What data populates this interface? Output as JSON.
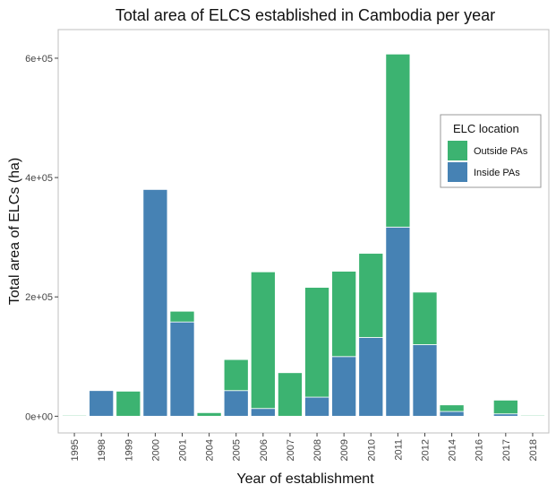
{
  "chart_data": {
    "type": "bar",
    "stacked": true,
    "title": "Total area of ELCS established in Cambodia per year",
    "xlabel": "Year of establishment",
    "ylabel": "Total area of ELCs (ha)",
    "categories": [
      "1995",
      "1998",
      "1999",
      "2000",
      "2001",
      "2004",
      "2005",
      "2006",
      "2007",
      "2008",
      "2009",
      "2010",
      "2011",
      "2012",
      "2014",
      "2016",
      "2017",
      "2018"
    ],
    "series": [
      {
        "name": "Inside PAs",
        "color": "#4682B4",
        "values": [
          0,
          43000,
          0,
          380000,
          158000,
          0,
          43000,
          13000,
          0,
          32000,
          100000,
          132000,
          317000,
          120000,
          8000,
          0,
          4000,
          0
        ]
      },
      {
        "name": "Outside PAs",
        "color": "#3CB371",
        "values": [
          1500,
          0,
          42000,
          0,
          18000,
          6000,
          52000,
          229000,
          73000,
          184000,
          143000,
          141000,
          290000,
          88000,
          11000,
          0,
          23000,
          1500
        ]
      }
    ],
    "yticks": [
      "0e+00",
      "2e+05",
      "4e+05",
      "6e+05"
    ],
    "ytick_values": [
      0,
      200000,
      400000,
      600000
    ],
    "ylim": [
      -28000,
      648000
    ],
    "grid": false,
    "legend": {
      "title": "ELC location",
      "position": "right",
      "entries": [
        {
          "label": "Outside PAs",
          "color": "#3CB371"
        },
        {
          "label": "Inside PAs",
          "color": "#4682B4"
        }
      ]
    }
  }
}
